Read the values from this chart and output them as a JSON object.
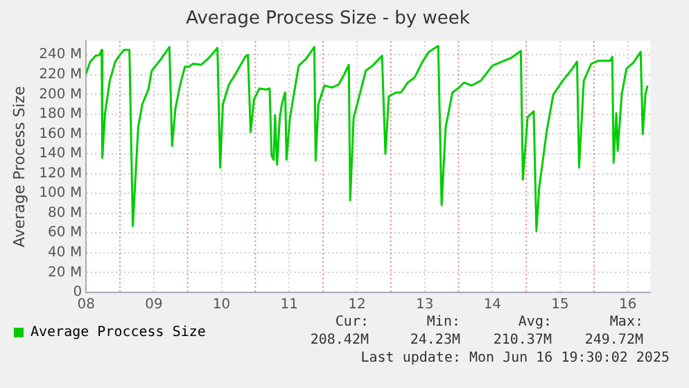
{
  "chart_data": {
    "type": "line",
    "title": "Average Process Size - by week",
    "ylabel": "Average Process Size",
    "xlim": [
      8,
      16.33
    ],
    "xticks": [
      {
        "value": 8,
        "label": "08"
      },
      {
        "value": 9,
        "label": "09"
      },
      {
        "value": 10,
        "label": "10"
      },
      {
        "value": 11,
        "label": "11"
      },
      {
        "value": 12,
        "label": "12"
      },
      {
        "value": 13,
        "label": "13"
      },
      {
        "value": 14,
        "label": "14"
      },
      {
        "value": 15,
        "label": "15"
      },
      {
        "value": 16,
        "label": "16"
      }
    ],
    "ylim": [
      0,
      254
    ],
    "yticks": [
      {
        "value": 0,
        "label": "0"
      },
      {
        "value": 20,
        "label": "20 M"
      },
      {
        "value": 40,
        "label": "40 M"
      },
      {
        "value": 60,
        "label": "60 M"
      },
      {
        "value": 80,
        "label": "80 M"
      },
      {
        "value": 100,
        "label": "100 M"
      },
      {
        "value": 120,
        "label": "120 M"
      },
      {
        "value": 140,
        "label": "140 M"
      },
      {
        "value": 160,
        "label": "160 M"
      },
      {
        "value": 180,
        "label": "180 M"
      },
      {
        "value": 200,
        "label": "200 M"
      },
      {
        "value": 220,
        "label": "220 M"
      },
      {
        "value": 240,
        "label": "240 M"
      }
    ],
    "grid": true,
    "legend": "bottom",
    "marker": "none",
    "line_style": "solid",
    "ref_lines": [
      {
        "axis": "x",
        "value": 8.5,
        "color": "#e08080",
        "line_style": "dotted"
      },
      {
        "axis": "x",
        "value": 9.5,
        "color": "#e08080",
        "line_style": "dotted"
      },
      {
        "axis": "x",
        "value": 10.5,
        "color": "#e08080",
        "line_style": "dotted"
      },
      {
        "axis": "x",
        "value": 11.5,
        "color": "#e08080",
        "line_style": "dotted"
      },
      {
        "axis": "x",
        "value": 12.5,
        "color": "#e08080",
        "line_style": "dotted"
      },
      {
        "axis": "x",
        "value": 13.5,
        "color": "#e08080",
        "line_style": "dotted"
      },
      {
        "axis": "x",
        "value": 14.5,
        "color": "#e08080",
        "line_style": "dotted"
      },
      {
        "axis": "x",
        "value": 15.5,
        "color": "#e08080",
        "line_style": "dotted"
      }
    ],
    "annotations": [
      "Cur:\n208.42M",
      "Min:\n24.23M",
      "Avg:\n210.37M",
      "Max:\n249.72M",
      "Last update: Mon Jun 16 19:30:02 2025"
    ],
    "series": [
      {
        "name": "Average Proccess Size",
        "color": "#00cc00",
        "x": [
          8.0,
          8.06,
          8.14,
          8.2,
          8.23,
          8.24,
          8.28,
          8.35,
          8.43,
          8.5,
          8.56,
          8.64,
          8.69,
          8.77,
          8.83,
          8.92,
          8.97,
          9.11,
          9.23,
          9.27,
          9.32,
          9.39,
          9.46,
          9.52,
          9.58,
          9.7,
          9.8,
          9.94,
          9.98,
          10.02,
          10.11,
          10.21,
          10.35,
          10.39,
          10.43,
          10.48,
          10.56,
          10.66,
          10.71,
          10.74,
          10.77,
          10.79,
          10.82,
          10.86,
          10.89,
          10.94,
          10.96,
          11.01,
          11.08,
          11.14,
          11.25,
          11.37,
          11.39,
          11.43,
          11.52,
          11.63,
          11.73,
          11.81,
          11.88,
          11.9,
          11.95,
          12.06,
          12.13,
          12.23,
          12.37,
          12.42,
          12.47,
          12.58,
          12.65,
          12.75,
          12.85,
          12.96,
          13.06,
          13.2,
          13.25,
          13.31,
          13.41,
          13.51,
          13.58,
          13.69,
          13.83,
          14.0,
          14.1,
          14.28,
          14.42,
          14.45,
          14.52,
          14.61,
          14.65,
          14.69,
          14.8,
          14.9,
          15.04,
          15.18,
          15.25,
          15.28,
          15.35,
          15.46,
          15.56,
          15.74,
          15.77,
          15.79,
          15.83,
          15.85,
          15.91,
          15.98,
          16.08,
          16.19,
          16.22,
          16.26,
          16.29
        ],
        "values": [
          221,
          233,
          239,
          240,
          245,
          136,
          181,
          214,
          233,
          240,
          245,
          245,
          67,
          167,
          190,
          205,
          224,
          236,
          248,
          148,
          186,
          210,
          228,
          228,
          231,
          230,
          236,
          247,
          126,
          190,
          210,
          221,
          238,
          240,
          162,
          195,
          206,
          205,
          206,
          138,
          134,
          179,
          129,
          176,
          190,
          202,
          134,
          176,
          205,
          229,
          236,
          248,
          133,
          190,
          209,
          207,
          210,
          220,
          230,
          93,
          176,
          205,
          224,
          229,
          239,
          140,
          198,
          202,
          202,
          212,
          217,
          232,
          243,
          249,
          88,
          167,
          202,
          207,
          212,
          209,
          214,
          229,
          232,
          237,
          244,
          114,
          177,
          183,
          62,
          105,
          162,
          200,
          214,
          226,
          233,
          126,
          214,
          231,
          234,
          234,
          238,
          131,
          181,
          143,
          200,
          226,
          232,
          243,
          160,
          200,
          209
        ]
      }
    ]
  }
}
